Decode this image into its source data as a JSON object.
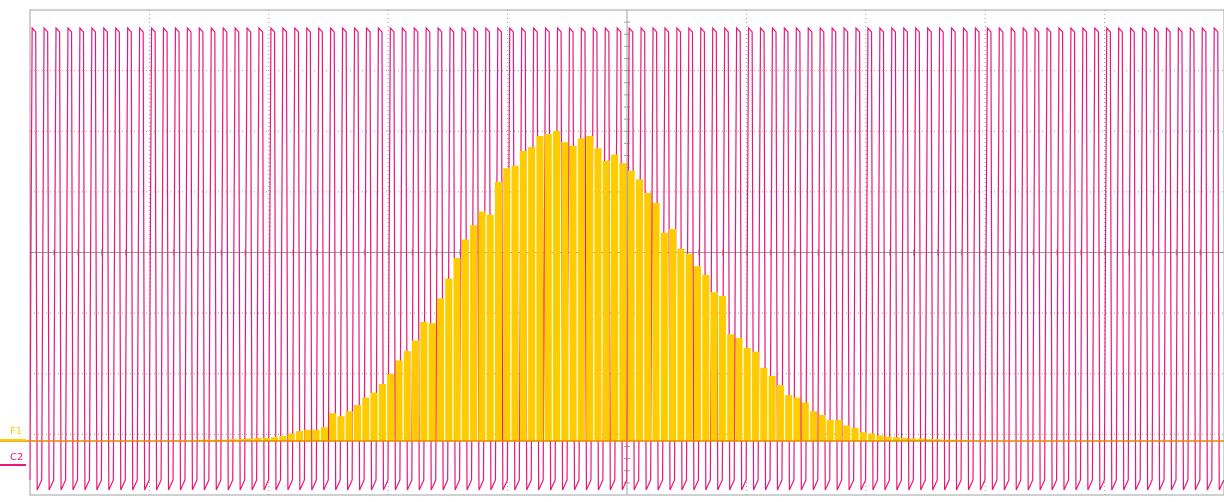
{
  "colors": {
    "background": "#ffffff",
    "grid": "#a0a0a0",
    "trace_c2": "#e8187a",
    "trace_f1": "#ffcc00",
    "f1_baseline": "#e08a00"
  },
  "channels": {
    "f1_label": "F1",
    "c2_label": "C2"
  },
  "chart_data": {
    "type": "bar",
    "grid": {
      "x_divisions": 10,
      "y_divisions": 8,
      "minor_ticks_per_division": 5,
      "dotted": true
    },
    "series": [
      {
        "name": "F1",
        "kind": "histogram",
        "bin_count": 144,
        "values_div": [
          0,
          0,
          0,
          0,
          0,
          0,
          0,
          0,
          0,
          0,
          0,
          0,
          0,
          0,
          0,
          0.01,
          0.01,
          0.01,
          0.01,
          0.01,
          0.02,
          0.02,
          0.02,
          0.02,
          0.03,
          0.03,
          0.04,
          0.05,
          0.05,
          0.06,
          0.08,
          0.12,
          0.16,
          0.18,
          0.18,
          0.22,
          0.45,
          0.4,
          0.48,
          0.58,
          0.7,
          0.78,
          0.92,
          1.08,
          1.3,
          1.45,
          1.62,
          1.92,
          1.9,
          2.3,
          2.62,
          2.95,
          3.25,
          3.48,
          3.7,
          3.65,
          4.18,
          4.4,
          4.44,
          4.68,
          4.74,
          4.92,
          4.95,
          5.0,
          4.82,
          4.76,
          4.88,
          4.92,
          4.72,
          4.52,
          4.62,
          4.48,
          4.36,
          4.22,
          4.0,
          3.84,
          3.36,
          3.42,
          3.1,
          3.02,
          2.82,
          2.68,
          2.4,
          2.34,
          1.72,
          1.66,
          1.5,
          1.44,
          1.18,
          1.05,
          0.9,
          0.74,
          0.7,
          0.62,
          0.48,
          0.42,
          0.34,
          0.34,
          0.25,
          0.21,
          0.14,
          0.12,
          0.09,
          0.07,
          0.06,
          0.05,
          0.04,
          0.04,
          0.03,
          0.03,
          0.02,
          0.02,
          0.02,
          0.01,
          0.01,
          0.01,
          0.01,
          0,
          0,
          0,
          0,
          0,
          0,
          0,
          0,
          0,
          0,
          0,
          0,
          0,
          0,
          0,
          0,
          0,
          0,
          0,
          0,
          0,
          0,
          0,
          0,
          0,
          0,
          0
        ]
      },
      {
        "name": "C2",
        "kind": "waveform",
        "cycles": 100,
        "high_div": 7.7,
        "low_div": -0.8
      }
    ]
  }
}
